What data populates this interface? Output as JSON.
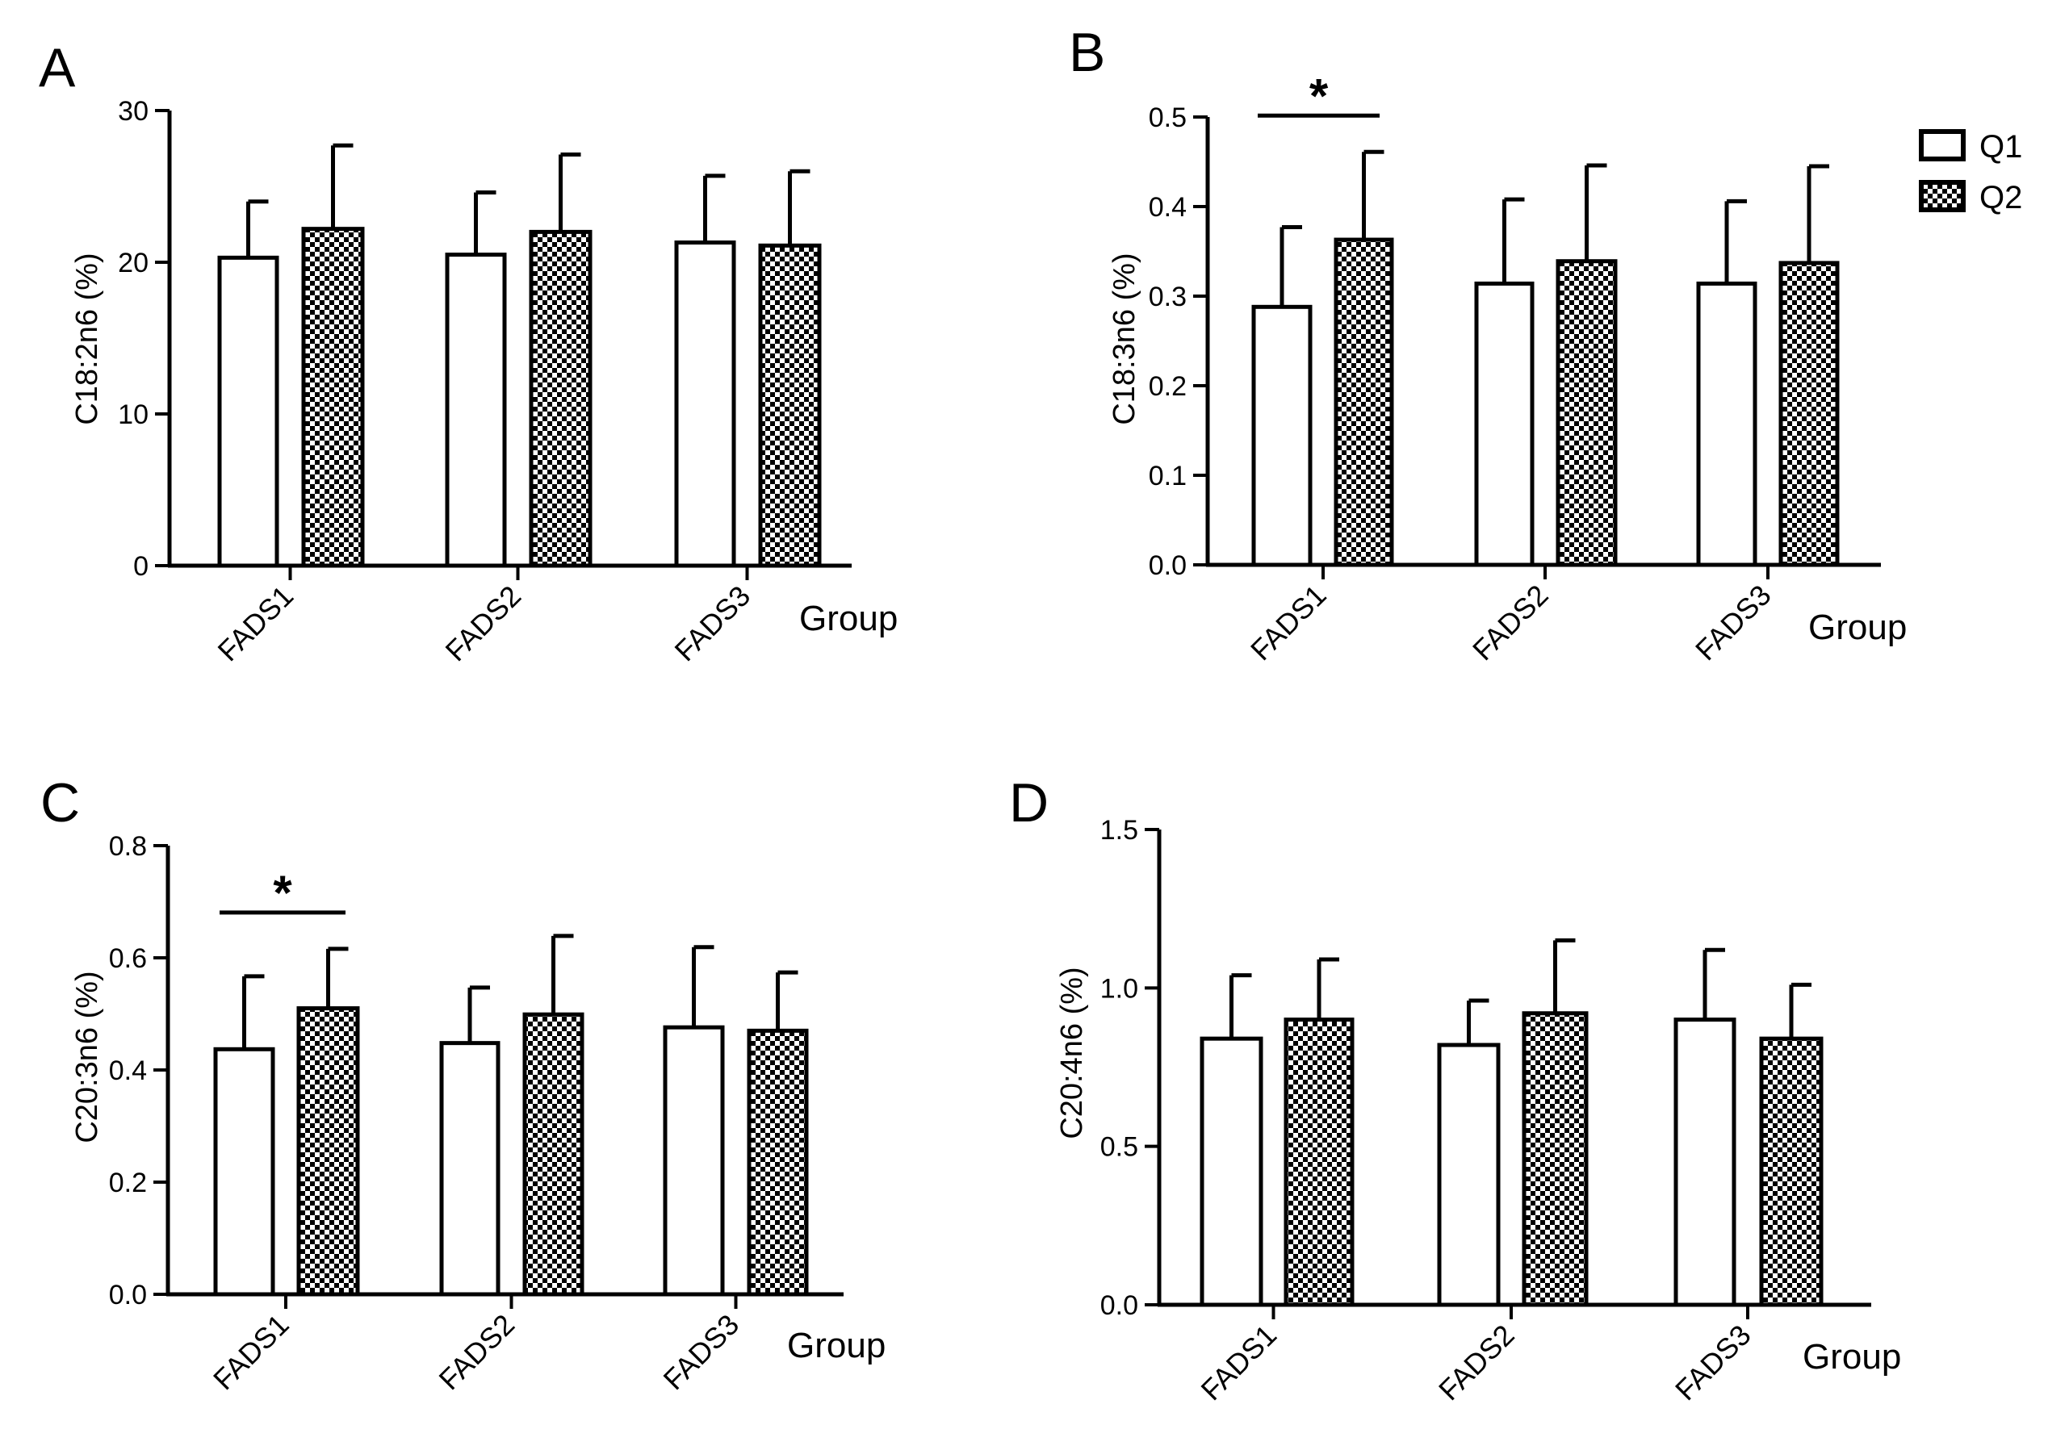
{
  "legend": {
    "position": "top-right",
    "entries": [
      {
        "key": "q1",
        "label": "Q1",
        "pattern": "open"
      },
      {
        "key": "q2",
        "label": "Q2",
        "pattern": "checkered"
      }
    ]
  },
  "colors": {
    "ink": "#000000",
    "fill_open": "#ffffff",
    "check_dark": "#000000",
    "check_light": "#ffffff"
  },
  "chart_data": [
    {
      "panel": "A",
      "type": "bar",
      "xlabel": "Group",
      "ylabel": "C18:2n6 (%)",
      "categories": [
        "FADS1",
        "FADS2",
        "FADS3"
      ],
      "ylim": [
        0,
        30
      ],
      "yticks": [
        0,
        10,
        20,
        30
      ],
      "tick_labels": [
        "0",
        "10",
        "20",
        "30"
      ],
      "series": [
        {
          "name": "Q1",
          "values": [
            20.3,
            20.5,
            21.3
          ],
          "errors": [
            3.7,
            4.1,
            4.4
          ]
        },
        {
          "name": "Q2",
          "values": [
            22.2,
            22.0,
            21.1
          ],
          "errors": [
            5.5,
            5.1,
            4.9
          ]
        }
      ],
      "significance": [
        {
          "category": "FADS1",
          "label": "",
          "show": false
        }
      ]
    },
    {
      "panel": "B",
      "type": "bar",
      "xlabel": "Group",
      "ylabel": "C18:3n6 (%)",
      "categories": [
        "FADS1",
        "FADS2",
        "FADS3"
      ],
      "ylim": [
        0,
        0.5
      ],
      "yticks": [
        0,
        0.1,
        0.2,
        0.3,
        0.4,
        0.5
      ],
      "tick_labels": [
        "0.0",
        "0.1",
        "0.2",
        "0.3",
        "0.4",
        "0.5"
      ],
      "series": [
        {
          "name": "Q1",
          "values": [
            0.288,
            0.314,
            0.314
          ],
          "errors": [
            0.089,
            0.094,
            0.092
          ]
        },
        {
          "name": "Q2",
          "values": [
            0.363,
            0.339,
            0.337
          ],
          "errors": [
            0.098,
            0.107,
            0.108
          ]
        }
      ],
      "significance": [
        {
          "category": "FADS1",
          "label": "*",
          "show": true
        }
      ]
    },
    {
      "panel": "C",
      "type": "bar",
      "xlabel": "Group",
      "ylabel": "C20:3n6 (%)",
      "categories": [
        "FADS1",
        "FADS2",
        "FADS3"
      ],
      "ylim": [
        0,
        0.8
      ],
      "yticks": [
        0,
        0.2,
        0.4,
        0.6,
        0.8
      ],
      "tick_labels": [
        "0.0",
        "0.2",
        "0.4",
        "0.6",
        "0.8"
      ],
      "series": [
        {
          "name": "Q1",
          "values": [
            0.437,
            0.448,
            0.476
          ],
          "errors": [
            0.13,
            0.099,
            0.143
          ]
        },
        {
          "name": "Q2",
          "values": [
            0.51,
            0.499,
            0.47
          ],
          "errors": [
            0.106,
            0.14,
            0.104
          ]
        }
      ],
      "significance": [
        {
          "category": "FADS1",
          "label": "*",
          "show": true
        }
      ]
    },
    {
      "panel": "D",
      "type": "bar",
      "xlabel": "Group",
      "ylabel": "C20:4n6 (%)",
      "categories": [
        "FADS1",
        "FADS2",
        "FADS3"
      ],
      "ylim": [
        0,
        1.5
      ],
      "yticks": [
        0,
        0.5,
        1.0,
        1.5
      ],
      "tick_labels": [
        "0.0",
        "0.5",
        "1.0",
        "1.5"
      ],
      "series": [
        {
          "name": "Q1",
          "values": [
            0.84,
            0.82,
            0.9
          ],
          "errors": [
            0.2,
            0.14,
            0.22
          ]
        },
        {
          "name": "Q2",
          "values": [
            0.9,
            0.92,
            0.84
          ],
          "errors": [
            0.19,
            0.23,
            0.17
          ]
        }
      ],
      "significance": [
        {
          "category": "FADS1",
          "label": "",
          "show": false
        }
      ]
    }
  ]
}
